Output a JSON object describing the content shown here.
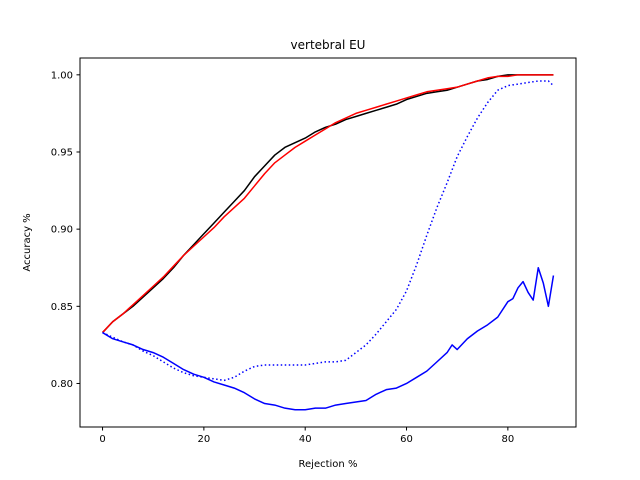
{
  "chart_data": {
    "type": "line",
    "title": "vertebral EU",
    "xlabel": "Rejection %",
    "ylabel": "Accuracy %",
    "xlim": [
      -4.45,
      93.45
    ],
    "ylim": [
      0.7718,
      1.0109
    ],
    "xticks": [
      0,
      20,
      40,
      60,
      80
    ],
    "xtick_labels": [
      "0",
      "20",
      "40",
      "60",
      "80"
    ],
    "yticks": [
      0.8,
      0.85,
      0.9,
      0.95,
      1.0
    ],
    "ytick_labels": [
      "0.80",
      "0.85",
      "0.90",
      "0.95",
      "1.00"
    ],
    "grid": false,
    "legend": "none",
    "series": [
      {
        "color": "#000000",
        "style": "solid",
        "x": [
          0,
          2,
          4,
          6,
          8,
          10,
          12,
          14,
          16,
          18,
          20,
          22,
          24,
          26,
          28,
          30,
          32,
          34,
          36,
          38,
          40,
          42,
          44,
          46,
          48,
          50,
          52,
          54,
          56,
          58,
          60,
          62,
          64,
          66,
          68,
          70,
          72,
          74,
          76,
          78,
          80,
          82,
          84,
          86,
          88,
          89
        ],
        "y": [
          0.833,
          0.84,
          0.845,
          0.85,
          0.856,
          0.862,
          0.868,
          0.875,
          0.883,
          0.89,
          0.897,
          0.904,
          0.911,
          0.918,
          0.925,
          0.934,
          0.941,
          0.948,
          0.953,
          0.956,
          0.959,
          0.963,
          0.966,
          0.968,
          0.971,
          0.973,
          0.975,
          0.977,
          0.979,
          0.981,
          0.984,
          0.986,
          0.988,
          0.989,
          0.99,
          0.992,
          0.994,
          0.996,
          0.997,
          0.999,
          1.0,
          1.0,
          1.0,
          1.0,
          1.0,
          1.0
        ]
      },
      {
        "color": "#ff0000",
        "style": "solid",
        "x": [
          0,
          2,
          4,
          6,
          8,
          10,
          12,
          14,
          16,
          18,
          20,
          22,
          24,
          26,
          28,
          30,
          32,
          34,
          36,
          38,
          40,
          42,
          44,
          46,
          48,
          50,
          52,
          54,
          56,
          58,
          60,
          62,
          64,
          66,
          68,
          70,
          72,
          74,
          76,
          78,
          80,
          82,
          84,
          86,
          88,
          89
        ],
        "y": [
          0.833,
          0.84,
          0.845,
          0.851,
          0.857,
          0.863,
          0.869,
          0.876,
          0.883,
          0.889,
          0.895,
          0.901,
          0.908,
          0.914,
          0.92,
          0.928,
          0.936,
          0.943,
          0.948,
          0.953,
          0.957,
          0.961,
          0.965,
          0.969,
          0.972,
          0.975,
          0.977,
          0.979,
          0.981,
          0.983,
          0.985,
          0.987,
          0.989,
          0.99,
          0.991,
          0.992,
          0.994,
          0.996,
          0.998,
          0.999,
          0.999,
          1.0,
          1.0,
          1.0,
          1.0,
          1.0
        ]
      },
      {
        "color": "#0000ff",
        "style": "solid",
        "x": [
          0,
          2,
          4,
          6,
          8,
          10,
          12,
          14,
          16,
          18,
          20,
          22,
          24,
          26,
          28,
          30,
          32,
          34,
          36,
          38,
          40,
          42,
          44,
          46,
          48,
          50,
          52,
          54,
          56,
          58,
          60,
          62,
          64,
          66,
          68,
          69,
          70,
          72,
          74,
          76,
          78,
          80,
          81,
          82,
          83,
          84,
          85,
          86,
          87,
          88,
          89
        ],
        "y": [
          0.833,
          0.829,
          0.827,
          0.825,
          0.822,
          0.82,
          0.817,
          0.813,
          0.809,
          0.806,
          0.804,
          0.801,
          0.799,
          0.797,
          0.794,
          0.79,
          0.787,
          0.786,
          0.784,
          0.783,
          0.783,
          0.784,
          0.784,
          0.786,
          0.787,
          0.788,
          0.789,
          0.793,
          0.796,
          0.797,
          0.8,
          0.804,
          0.808,
          0.814,
          0.82,
          0.825,
          0.822,
          0.829,
          0.834,
          0.838,
          0.843,
          0.853,
          0.855,
          0.862,
          0.866,
          0.859,
          0.854,
          0.875,
          0.865,
          0.85,
          0.87
        ]
      },
      {
        "color": "#0000ff",
        "style": "dotted",
        "x": [
          0,
          2,
          4,
          6,
          8,
          10,
          12,
          14,
          16,
          18,
          20,
          22,
          24,
          26,
          28,
          30,
          32,
          34,
          36,
          38,
          40,
          42,
          44,
          46,
          48,
          50,
          52,
          54,
          56,
          58,
          60,
          62,
          64,
          66,
          68,
          70,
          72,
          74,
          76,
          78,
          80,
          82,
          84,
          86,
          88,
          89
        ],
        "y": [
          0.833,
          0.83,
          0.827,
          0.825,
          0.821,
          0.818,
          0.814,
          0.81,
          0.807,
          0.805,
          0.804,
          0.803,
          0.802,
          0.804,
          0.808,
          0.811,
          0.812,
          0.812,
          0.812,
          0.812,
          0.812,
          0.813,
          0.814,
          0.814,
          0.815,
          0.82,
          0.825,
          0.832,
          0.84,
          0.848,
          0.86,
          0.877,
          0.896,
          0.914,
          0.93,
          0.947,
          0.96,
          0.972,
          0.982,
          0.99,
          0.993,
          0.994,
          0.995,
          0.996,
          0.996,
          0.993
        ]
      }
    ]
  }
}
